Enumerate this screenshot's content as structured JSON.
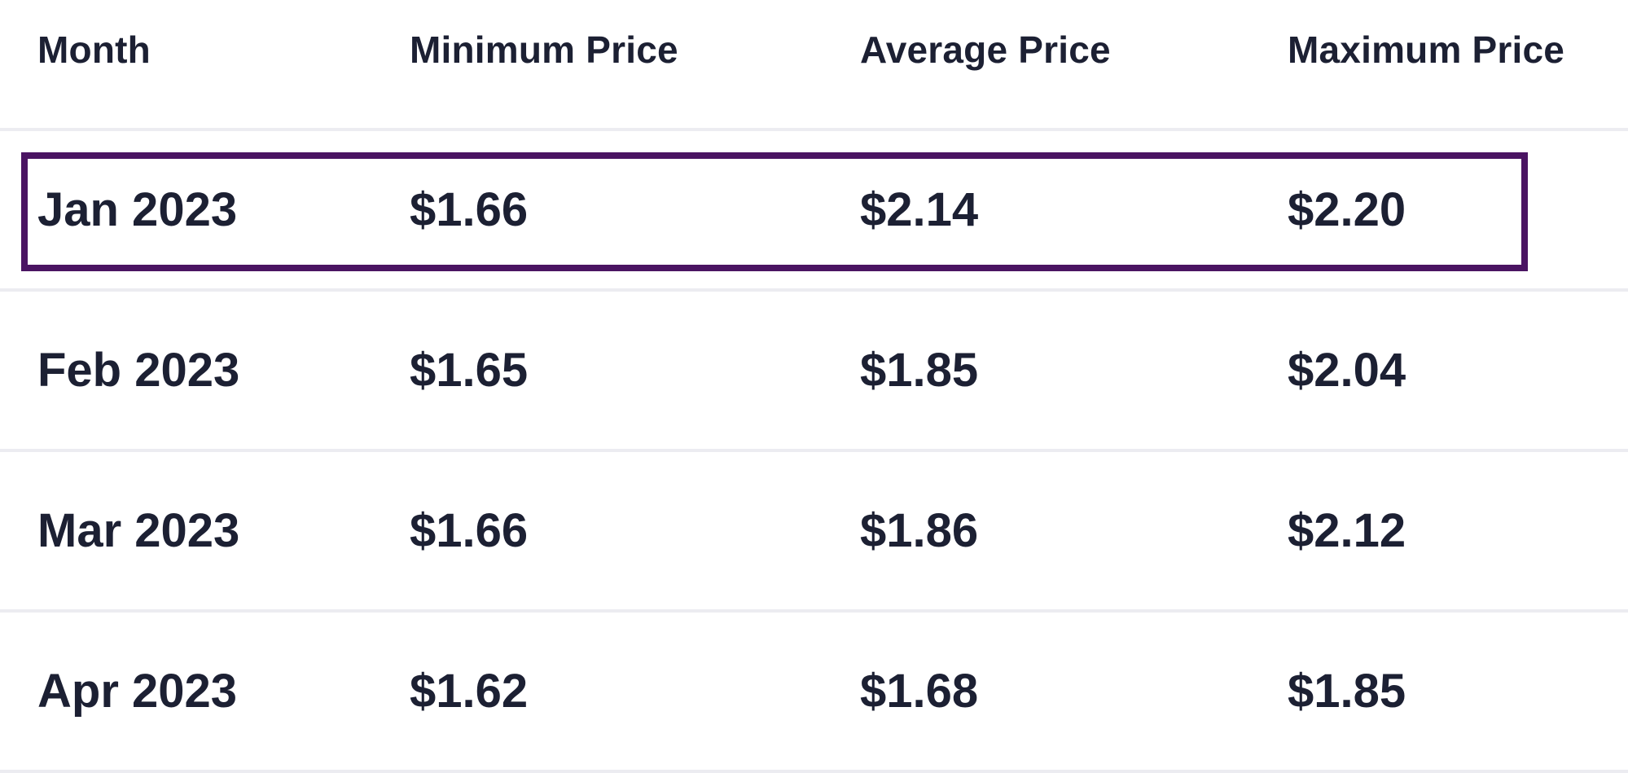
{
  "table": {
    "columns": [
      "Month",
      "Minimum Price",
      "Average Price",
      "Maximum Price"
    ],
    "rows": [
      [
        "Jan 2023",
        "$1.66",
        "$2.14",
        "$2.20"
      ],
      [
        "Feb 2023",
        "$1.65",
        "$1.85",
        "$2.04"
      ],
      [
        "Mar 2023",
        "$1.66",
        "$1.86",
        "$2.12"
      ],
      [
        "Apr 2023",
        "$1.62",
        "$1.68",
        "$1.85"
      ]
    ],
    "highlighted_row": "Jan 2023"
  },
  "colors": {
    "text": "#1c2033",
    "divider": "#ececf1",
    "highlight_border": "#4a1462",
    "background": "#ffffff"
  }
}
